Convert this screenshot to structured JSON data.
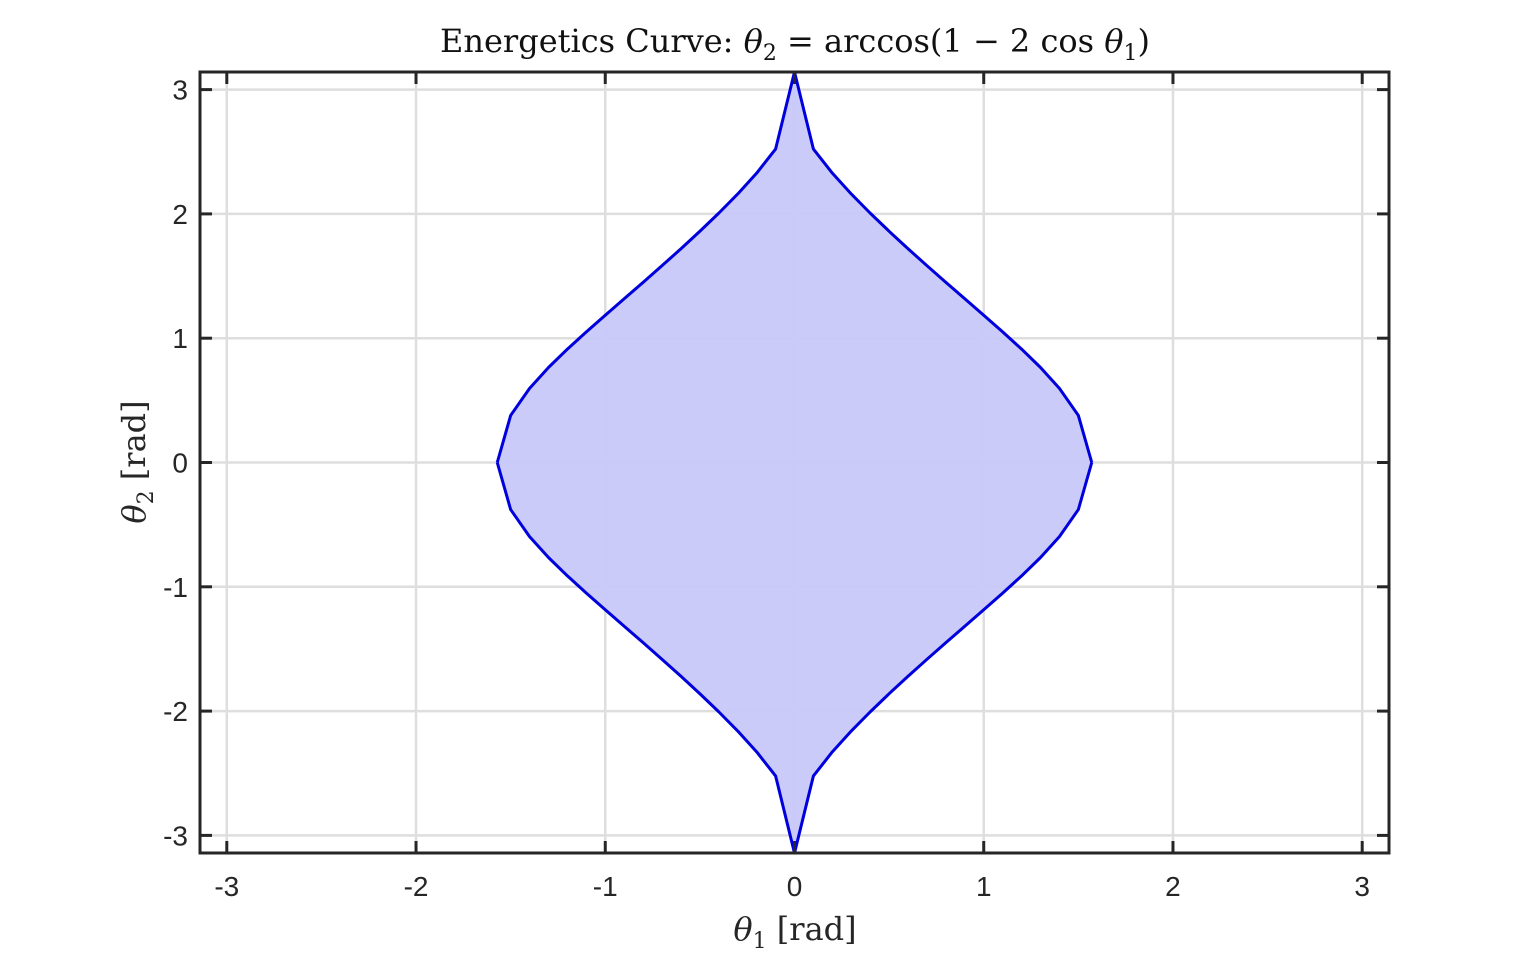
{
  "chart_data": {
    "type": "area",
    "title": {
      "prefix": "Energetics Curve: ",
      "theta": "θ",
      "theta_sub": "2",
      "middle": " = arccos(1 − 2 cos ",
      "theta2": "θ",
      "theta2_sub": "1",
      "suffix": ")"
    },
    "xlabel": {
      "symbol": "θ",
      "sub": "1",
      "unit": " [rad]"
    },
    "ylabel": {
      "symbol": "θ",
      "sub": "2",
      "unit": " [rad]"
    },
    "xlim": [
      -3.1416,
      3.1416
    ],
    "ylim": [
      -3.1416,
      3.1416
    ],
    "xticks": [
      -3,
      -2,
      -1,
      0,
      1,
      2,
      3
    ],
    "yticks": [
      -3,
      -2,
      -1,
      0,
      1,
      2,
      3
    ],
    "xtick_labels": [
      "-3",
      "-2",
      "-1",
      "0",
      "1",
      "2",
      "3"
    ],
    "ytick_labels": [
      "-3",
      "-2",
      "-1",
      "0",
      "1",
      "2",
      "3"
    ],
    "grid": true,
    "box": true,
    "series": [
      {
        "fill_color": "#c8c8fa",
        "line_color": "#0000dd",
        "x": [
          -1.5708,
          -1.5,
          -1.4,
          -1.3,
          -1.2,
          -1.1,
          -1.0,
          -0.9,
          -0.8,
          -0.7,
          -0.6,
          -0.5,
          -0.4,
          -0.3,
          -0.2,
          -0.1,
          0.0,
          0.1,
          0.2,
          0.3,
          0.4,
          0.5,
          0.6,
          0.7,
          0.8,
          0.9,
          1.0,
          1.1,
          1.2,
          1.3,
          1.4,
          1.5,
          1.5708
        ],
        "y_upper": [
          0.0,
          0.3786,
          0.5962,
          0.7644,
          0.9125,
          1.0509,
          1.1849,
          1.3172,
          1.4496,
          1.5834,
          1.7198,
          1.8602,
          2.0062,
          2.1605,
          2.3279,
          2.5214,
          3.1416,
          2.5214,
          2.3279,
          2.1605,
          2.0062,
          1.8602,
          1.7198,
          1.5834,
          1.4496,
          1.3172,
          1.1849,
          1.0509,
          0.9125,
          0.7644,
          0.5962,
          0.3786,
          0.0
        ],
        "y_lower": [
          0.0,
          -0.3786,
          -0.5962,
          -0.7644,
          -0.9125,
          -1.0509,
          -1.1849,
          -1.3172,
          -1.4496,
          -1.5834,
          -1.7198,
          -1.8602,
          -2.0062,
          -2.1605,
          -2.3279,
          -2.5214,
          -3.1416,
          -2.5214,
          -2.3279,
          -2.1605,
          -2.0062,
          -1.8602,
          -1.7198,
          -1.5834,
          -1.4496,
          -1.3172,
          -1.1849,
          -1.0509,
          -0.9125,
          -0.7644,
          -0.5962,
          -0.3786,
          0.0
        ]
      }
    ]
  }
}
